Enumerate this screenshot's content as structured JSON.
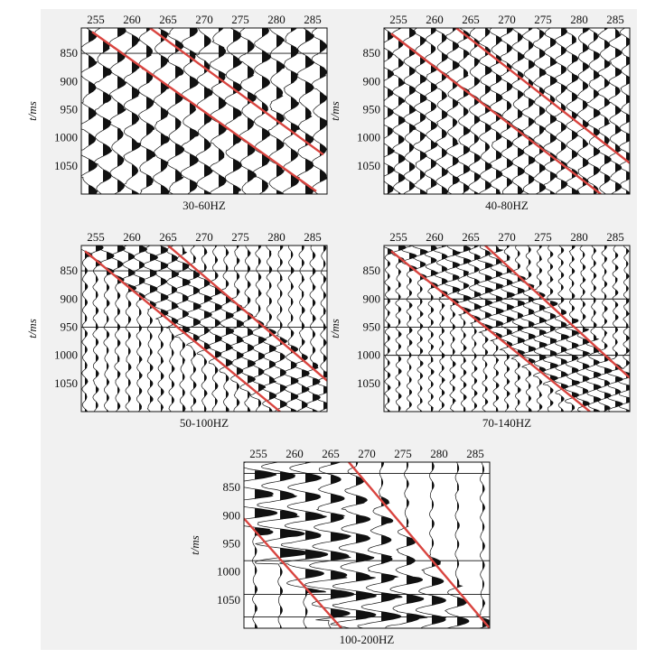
{
  "colors": {
    "trace": "#111111",
    "frame": "#111111",
    "red_line": "#d9443f",
    "grid_line": "#111111",
    "panel_bg": "#ffffff",
    "figure_bg": "#f1f1f1"
  },
  "chart_data": [
    {
      "type": "seismic-wiggle",
      "title": "30-60HZ",
      "ylabel": "t/ms",
      "xlim": [
        253,
        287
      ],
      "ylim": [
        805,
        1100
      ],
      "x_ticks": [
        255,
        260,
        265,
        270,
        275,
        280,
        285
      ],
      "y_ticks": [
        850,
        900,
        950,
        1000,
        1050
      ],
      "trace_positions": [
        254,
        256,
        258,
        260,
        262,
        264,
        266,
        268,
        270,
        272,
        274,
        276,
        278,
        280,
        282,
        284,
        286
      ],
      "horizontal_lines_at": [
        850
      ],
      "red_lines": [
        {
          "x": [
            254.5,
            285.5
          ],
          "t": [
            812,
            1095
          ]
        },
        {
          "x": [
            262.5,
            286.5
          ],
          "t": [
            805,
            1030
          ]
        }
      ],
      "event_slope_ms_per_trace": 9.2,
      "wavelength_ms": 46,
      "energy": "dense"
    },
    {
      "type": "seismic-wiggle",
      "title": "40-80HZ",
      "ylabel": "t/ms",
      "xlim": [
        253,
        287
      ],
      "ylim": [
        805,
        1100
      ],
      "x_ticks": [
        255,
        260,
        265,
        270,
        275,
        280,
        285
      ],
      "y_ticks": [
        850,
        900,
        950,
        1000,
        1050
      ],
      "trace_positions": [
        253.5,
        255,
        256.5,
        258,
        259.5,
        261,
        262.5,
        264,
        265.5,
        267,
        268.5,
        270,
        271.5,
        273,
        274.5,
        276,
        277.5,
        279,
        280.5,
        282,
        283.5,
        285,
        286.5
      ],
      "horizontal_lines_at": [],
      "red_lines": [
        {
          "x": [
            254.0,
            283.0
          ],
          "t": [
            815,
            1100
          ]
        },
        {
          "x": [
            263.0,
            287.0
          ],
          "t": [
            805,
            1045
          ]
        }
      ],
      "event_slope_ms_per_trace": 9.6,
      "wavelength_ms": 34,
      "energy": "dense"
    },
    {
      "type": "seismic-wiggle",
      "title": "50-100HZ",
      "ylabel": "t/ms",
      "xlim": [
        253,
        287
      ],
      "ylim": [
        805,
        1100
      ],
      "x_ticks": [
        255,
        260,
        265,
        270,
        275,
        280,
        285
      ],
      "y_ticks": [
        850,
        900,
        950,
        1000,
        1050
      ],
      "trace_positions": [
        253.5,
        255,
        256.5,
        258,
        259.5,
        261,
        262.5,
        264,
        265.5,
        267,
        268.5,
        270,
        271.5,
        273,
        274.5,
        276,
        277.5,
        279,
        280.5,
        282,
        283.5,
        285,
        286.5
      ],
      "horizontal_lines_at": [
        850,
        950
      ],
      "red_lines": [
        {
          "x": [
            253.5,
            280.5
          ],
          "t": [
            815,
            1100
          ]
        },
        {
          "x": [
            265.0,
            287.0
          ],
          "t": [
            805,
            1045
          ]
        }
      ],
      "event_slope_ms_per_trace": 9.8,
      "wavelength_ms": 28,
      "energy": "banded"
    },
    {
      "type": "seismic-wiggle",
      "title": "70-140HZ",
      "ylabel": "t/ms",
      "xlim": [
        253,
        287
      ],
      "ylim": [
        805,
        1100
      ],
      "x_ticks": [
        255,
        260,
        265,
        270,
        275,
        280,
        285
      ],
      "y_ticks": [
        850,
        900,
        950,
        1000,
        1050
      ],
      "trace_positions": [
        253.5,
        255,
        256.5,
        258,
        259.5,
        261,
        262.5,
        264,
        265.5,
        267,
        268.5,
        270,
        271.5,
        273,
        274.5,
        276,
        277.5,
        279,
        280.5,
        282,
        283.5,
        285,
        286.5
      ],
      "horizontal_lines_at": [
        900,
        950,
        1000
      ],
      "red_lines": [
        {
          "x": [
            254.0,
            281.5
          ],
          "t": [
            815,
            1100
          ]
        },
        {
          "x": [
            267.0,
            287.0
          ],
          "t": [
            805,
            1040
          ]
        }
      ],
      "event_slope_ms_per_trace": 10.0,
      "wavelength_ms": 22,
      "energy": "banded"
    },
    {
      "type": "seismic-wiggle",
      "title": "100-200HZ",
      "ylabel": "t/ms",
      "xlim": [
        253,
        287
      ],
      "ylim": [
        805,
        1100
      ],
      "x_ticks": [
        255,
        260,
        265,
        270,
        275,
        280,
        285
      ],
      "y_ticks": [
        850,
        900,
        950,
        1000,
        1050
      ],
      "trace_positions": [
        254.5,
        258,
        261.5,
        265,
        268.5,
        272,
        275.5,
        279,
        282.5,
        286
      ],
      "horizontal_lines_at": [
        825,
        980,
        1040,
        1080
      ],
      "red_lines": [
        {
          "x": [
            253.0,
            266.5
          ],
          "t": [
            905,
            1100
          ]
        },
        {
          "x": [
            267.5,
            287.0
          ],
          "t": [
            805,
            1100
          ]
        }
      ],
      "event_slope_ms_per_trace": 10.5,
      "wavelength_ms": 34,
      "energy": "wedge"
    }
  ]
}
